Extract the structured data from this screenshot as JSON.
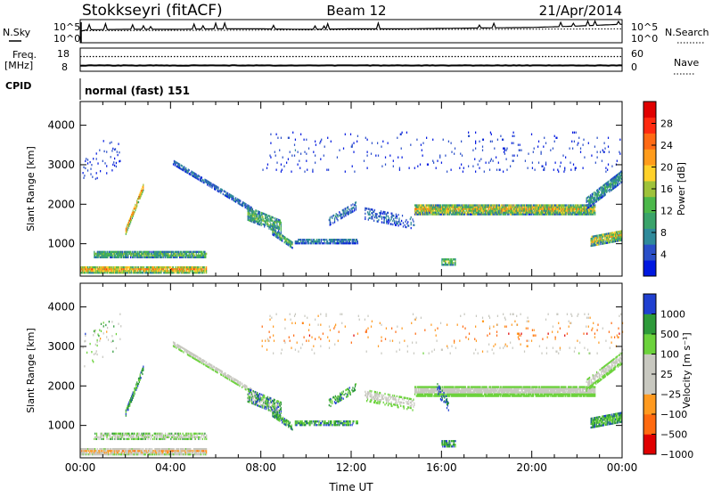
{
  "header": {
    "station": "Stokkseyri (fitACF)",
    "beam": "Beam 12",
    "date": "21/Apr/2014"
  },
  "panel_labels": {
    "nsky": "N.Sky",
    "nsearch": "N.Search",
    "nsky_hi": "10^5",
    "nsky_lo": "10^0",
    "freq_a": "Freq.",
    "freq_b": "[MHz]",
    "freq_hi": "18",
    "freq_lo": "8",
    "nave": "Nave",
    "nave_hi": "60",
    "nave_lo": "0",
    "cpid": "CPID",
    "mode": "normal (fast) 151"
  },
  "chart_data": [
    {
      "type": "line",
      "name": "noise",
      "x_range": [
        0,
        24
      ],
      "series": [
        {
          "name": "N.Sky",
          "x": [
            0,
            0.3,
            2,
            4,
            6,
            8,
            10,
            12,
            14,
            16,
            18,
            20,
            22,
            24
          ],
          "values": [
            2.5,
            2.8,
            2.9,
            2.9,
            3.0,
            3.0,
            2.9,
            3.0,
            3.0,
            3.1,
            3.2,
            3.3,
            3.6,
            4.0
          ]
        },
        {
          "name": "N.Search",
          "x": [
            0,
            6,
            12,
            18,
            24
          ],
          "values": [
            2.6,
            2.7,
            2.8,
            2.9,
            3.0
          ]
        }
      ]
    },
    {
      "type": "line",
      "name": "freq-nave",
      "x_range": [
        0,
        24
      ],
      "series": [
        {
          "name": "Freq",
          "x": [
            0,
            24
          ],
          "values": [
            10.5,
            10.5
          ]
        },
        {
          "name": "Nave",
          "x": [
            0,
            24
          ],
          "values": [
            38,
            38
          ]
        }
      ]
    },
    {
      "type": "heatmap",
      "name": "power",
      "xlabel": "",
      "ylabel": "Slant Range [km]",
      "xlim": [
        0,
        24
      ],
      "ylim": [
        180,
        4600
      ],
      "yticks": [
        1000,
        2000,
        3000,
        4000
      ],
      "colorbar": {
        "label": "Power [dB]",
        "ticks": [
          "4",
          "8",
          "12",
          "16",
          "20",
          "24",
          "28"
        ],
        "min": 0,
        "max": 32,
        "colors": [
          "#0018e0",
          "#2a4fc8",
          "#2f8a9a",
          "#3aa36a",
          "#4cb84a",
          "#9ec23a",
          "#ffd12a",
          "#ff9c1c",
          "#ff6a14",
          "#ff2a10",
          "#e00000"
        ]
      },
      "features": [
        {
          "kind": "band",
          "x0": 0,
          "x1": 5.6,
          "yc0": 320,
          "yc1": 320,
          "w": 160,
          "v": 22,
          "d": 0.9,
          "noise": 6
        },
        {
          "kind": "band",
          "x0": 0.6,
          "x1": 5.6,
          "yc0": 700,
          "yc1": 700,
          "w": 140,
          "v": 14,
          "d": 0.85,
          "noise": 5
        },
        {
          "kind": "band",
          "x0": 2.0,
          "x1": 2.8,
          "yc0": 1300,
          "yc1": 2450,
          "w": 160,
          "v": 26,
          "d": 0.9,
          "noise": 4
        },
        {
          "kind": "band",
          "x0": 4.1,
          "x1": 7.6,
          "yc0": 3050,
          "yc1": 1850,
          "w": 130,
          "v": 7,
          "d": 0.7,
          "noise": 3
        },
        {
          "kind": "band",
          "x0": 7.4,
          "x1": 8.9,
          "yc0": 1750,
          "yc1": 1400,
          "w": 340,
          "v": 13,
          "d": 0.7,
          "noise": 5
        },
        {
          "kind": "band",
          "x0": 8.5,
          "x1": 9.4,
          "yc0": 1300,
          "yc1": 950,
          "w": 180,
          "v": 12,
          "d": 0.8,
          "noise": 5
        },
        {
          "kind": "band",
          "x0": 9.5,
          "x1": 12.3,
          "yc0": 1050,
          "yc1": 1050,
          "w": 130,
          "v": 8,
          "d": 0.7,
          "noise": 3
        },
        {
          "kind": "band",
          "x0": 11.0,
          "x1": 12.2,
          "yc0": 1550,
          "yc1": 1950,
          "w": 220,
          "v": 8,
          "d": 0.45,
          "noise": 3
        },
        {
          "kind": "band",
          "x0": 12.6,
          "x1": 14.8,
          "yc0": 1750,
          "yc1": 1500,
          "w": 300,
          "v": 6,
          "d": 0.35,
          "noise": 3
        },
        {
          "kind": "band",
          "x0": 14.8,
          "x1": 22.8,
          "yc0": 1850,
          "yc1": 1850,
          "w": 260,
          "v": 18,
          "d": 0.95,
          "noise": 8
        },
        {
          "kind": "band",
          "x0": 22.4,
          "x1": 24,
          "yc0": 2000,
          "yc1": 2700,
          "w": 300,
          "v": 10,
          "d": 0.8,
          "noise": 4
        },
        {
          "kind": "band",
          "x0": 22.6,
          "x1": 24,
          "yc0": 1050,
          "yc1": 1200,
          "w": 260,
          "v": 18,
          "d": 0.9,
          "noise": 8
        },
        {
          "kind": "band",
          "x0": 16.0,
          "x1": 16.6,
          "yc0": 520,
          "yc1": 520,
          "w": 160,
          "v": 16,
          "d": 0.8,
          "noise": 5
        },
        {
          "kind": "band",
          "x0": 0.1,
          "x1": 1.8,
          "yc0": 2900,
          "yc1": 3400,
          "w": 900,
          "v": 4,
          "d": 0.05,
          "noise": 2
        },
        {
          "kind": "band",
          "x0": 8,
          "x1": 24,
          "yc0": 3300,
          "yc1": 3300,
          "w": 1000,
          "v": 4,
          "d": 0.025,
          "noise": 2
        }
      ]
    },
    {
      "type": "heatmap",
      "name": "velocity",
      "xlabel": "Time UT",
      "ylabel": "Slant Range [km]",
      "xlim": [
        0,
        24
      ],
      "ylim": [
        180,
        4600
      ],
      "yticks": [
        1000,
        2000,
        3000,
        4000
      ],
      "xticks": [
        "00:00",
        "04:00",
        "08:00",
        "12:00",
        "16:00",
        "20:00",
        "00:00"
      ],
      "colorbar": {
        "label": "Velocity [m s⁻¹]",
        "ticks": [
          "1000",
          "500",
          "100",
          "25",
          "−25",
          "−100",
          "−500",
          "−1000"
        ],
        "colors": [
          "#e00000",
          "#ff6a10",
          "#ff9a20",
          "#c8c8c0",
          "#c8c8c0",
          "#6cd23c",
          "#2e9a3a",
          "#2040d0"
        ]
      },
      "features": [
        {
          "kind": "band",
          "x0": 0,
          "x1": 5.6,
          "yc0": 320,
          "yc1": 320,
          "w": 160,
          "v": 5,
          "d": 0.85,
          "noise": 1
        },
        {
          "kind": "band",
          "x0": 0.6,
          "x1": 5.6,
          "yc0": 700,
          "yc1": 700,
          "w": 140,
          "v": 3.5,
          "d": 0.6,
          "noise": 1
        },
        {
          "kind": "band",
          "x0": 2.0,
          "x1": 2.8,
          "yc0": 1300,
          "yc1": 2450,
          "w": 160,
          "v": 1.5,
          "d": 0.8,
          "noise": 1
        },
        {
          "kind": "band",
          "x0": 4.1,
          "x1": 7.6,
          "yc0": 3050,
          "yc1": 1850,
          "w": 130,
          "v": 3.5,
          "d": 0.7,
          "noise": 0
        },
        {
          "kind": "band",
          "x0": 7.4,
          "x1": 8.9,
          "yc0": 1750,
          "yc1": 1400,
          "w": 340,
          "v": 2,
          "d": 0.65,
          "noise": 2
        },
        {
          "kind": "band",
          "x0": 8.5,
          "x1": 9.4,
          "yc0": 1300,
          "yc1": 950,
          "w": 180,
          "v": 1.5,
          "d": 0.7,
          "noise": 1
        },
        {
          "kind": "band",
          "x0": 9.5,
          "x1": 12.3,
          "yc0": 1050,
          "yc1": 1050,
          "w": 130,
          "v": 1.5,
          "d": 0.65,
          "noise": 1
        },
        {
          "kind": "band",
          "x0": 11.0,
          "x1": 12.2,
          "yc0": 1550,
          "yc1": 1950,
          "w": 220,
          "v": 1.5,
          "d": 0.4,
          "noise": 1
        },
        {
          "kind": "band",
          "x0": 12.6,
          "x1": 14.8,
          "yc0": 1750,
          "yc1": 1500,
          "w": 300,
          "v": 3.5,
          "d": 0.35,
          "noise": 0
        },
        {
          "kind": "band",
          "x0": 14.8,
          "x1": 22.8,
          "yc0": 1850,
          "yc1": 1850,
          "w": 260,
          "v": 3.5,
          "d": 0.9,
          "noise": 0
        },
        {
          "kind": "band",
          "x0": 22.4,
          "x1": 24,
          "yc0": 2000,
          "yc1": 2700,
          "w": 300,
          "v": 3.5,
          "d": 0.6,
          "noise": 0
        },
        {
          "kind": "band",
          "x0": 22.6,
          "x1": 24,
          "yc0": 1050,
          "yc1": 1200,
          "w": 260,
          "v": 1.5,
          "d": 0.85,
          "noise": 1
        },
        {
          "kind": "band",
          "x0": 16.0,
          "x1": 16.6,
          "yc0": 520,
          "yc1": 520,
          "w": 160,
          "v": 1.5,
          "d": 0.7,
          "noise": 1
        },
        {
          "kind": "band",
          "x0": 15.8,
          "x1": 16.3,
          "yc0": 1900,
          "yc1": 1500,
          "w": 300,
          "v": 0.5,
          "d": 0.3,
          "noise": 1
        },
        {
          "kind": "band",
          "x0": 0.1,
          "x1": 1.8,
          "yc0": 2900,
          "yc1": 3400,
          "w": 900,
          "v": 3.5,
          "d": 0.05,
          "noise": 2
        },
        {
          "kind": "band",
          "x0": 8,
          "x1": 24,
          "yc0": 3300,
          "yc1": 3300,
          "w": 1000,
          "v": 6,
          "d": 0.025,
          "noise": 1
        }
      ]
    }
  ]
}
